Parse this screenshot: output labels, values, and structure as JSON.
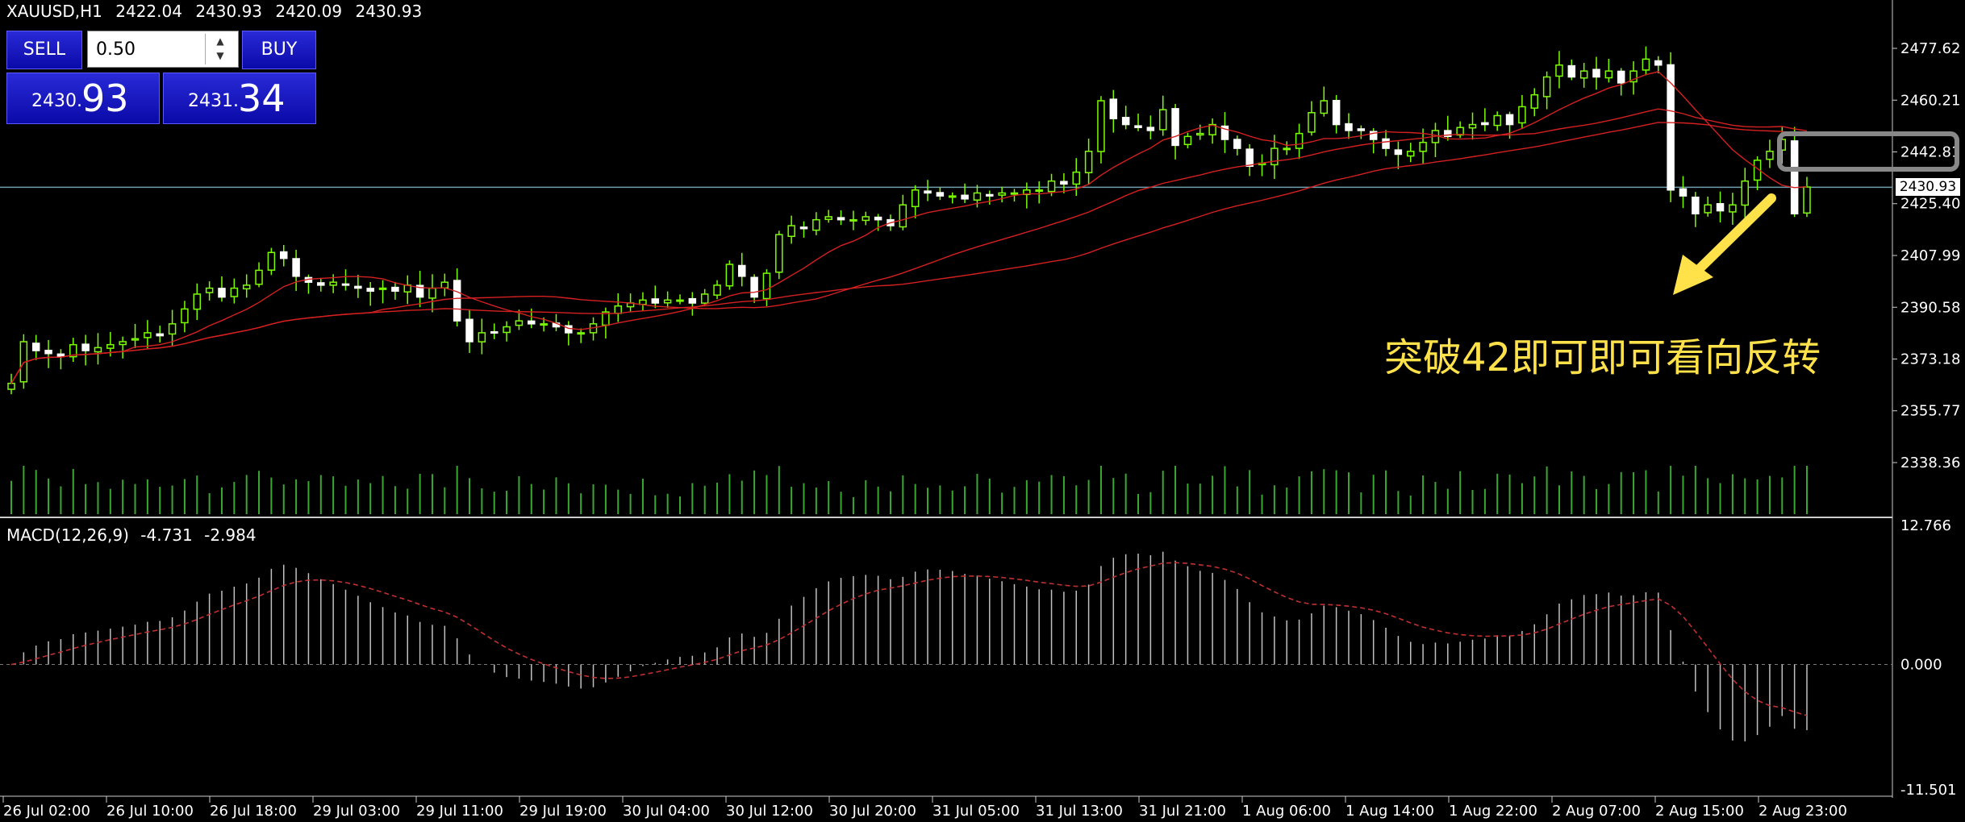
{
  "header": {
    "symbol": "XAUUSD,H1",
    "open": "2422.04",
    "high": "2430.93",
    "low": "2420.09",
    "close": "2430.93"
  },
  "trade_panel": {
    "sell_label": "SELL",
    "buy_label": "BUY",
    "lot_value": "0.50",
    "sell_price_small": "2430.",
    "sell_price_big": "93",
    "buy_price_small": "2431.",
    "buy_price_big": "34",
    "button_color": "#1515c8"
  },
  "annotation": {
    "text": "突破42即可即可看向反转",
    "color": "#ffe14a"
  },
  "current_price_label": "2430.93",
  "macd": {
    "label": "MACD(12,26,9)",
    "main": "-4.731",
    "signal": "-2.984",
    "max_label": "12.766",
    "zero_label": "0.000",
    "min_label": "-11.501"
  },
  "chart_data": {
    "type": "candlestick",
    "symbol": "XAUUSD",
    "timeframe": "H1",
    "price_axis_ticks": [
      "2477.62",
      "2460.21",
      "2442.81",
      "2425.40",
      "2407.99",
      "2390.58",
      "2373.18",
      "2355.77",
      "2338.36"
    ],
    "price_axis_ticks_num": [
      2477.62,
      2460.21,
      2442.81,
      2425.4,
      2407.99,
      2390.58,
      2373.18,
      2355.77,
      2338.36
    ],
    "time_labels": [
      "26 Jul 02:00",
      "26 Jul 10:00",
      "26 Jul 18:00",
      "29 Jul 03:00",
      "29 Jul 11:00",
      "29 Jul 19:00",
      "30 Jul 04:00",
      "30 Jul 12:00",
      "30 Jul 20:00",
      "31 Jul 05:00",
      "31 Jul 13:00",
      "31 Jul 21:00",
      "1 Aug 06:00",
      "1 Aug 14:00",
      "1 Aug 22:00",
      "2 Aug 07:00",
      "2 Aug 15:00",
      "2 Aug 23:00"
    ],
    "close": [
      2365,
      2379,
      2376,
      2375,
      2374,
      2378,
      2376,
      2377,
      2378,
      2379,
      2380,
      2382,
      2381,
      2385,
      2390,
      2395,
      2397,
      2394,
      2397,
      2398,
      2403,
      2409,
      2407,
      2401,
      2399,
      2398,
      2399,
      2398,
      2397,
      2396,
      2397,
      2396,
      2398,
      2394,
      2397,
      2399,
      2386,
      2379,
      2382,
      2382,
      2384,
      2386,
      2385,
      2385,
      2384,
      2382,
      2382,
      2385,
      2389,
      2391,
      2392,
      2393,
      2392,
      2393,
      2393,
      2392,
      2395,
      2398,
      2405,
      2401,
      2394,
      2402,
      2415,
      2418,
      2417,
      2420,
      2421,
      2420,
      2420,
      2421,
      2420,
      2418,
      2425,
      2430,
      2429,
      2428,
      2428,
      2427,
      2429,
      2428,
      2429,
      2429,
      2430,
      2430,
      2433,
      2432,
      2436,
      2443,
      2460,
      2454,
      2452,
      2451,
      2450,
      2457,
      2445,
      2448,
      2449,
      2452,
      2447,
      2444,
      2438,
      2439,
      2444,
      2444,
      2449,
      2456,
      2460,
      2452,
      2450,
      2450,
      2447,
      2444,
      2442,
      2443,
      2446,
      2450,
      2448,
      2451,
      2452,
      2452,
      2455,
      2452,
      2458,
      2462,
      2468,
      2472,
      2468,
      2470,
      2468,
      2470,
      2466,
      2470,
      2474,
      2472,
      2430,
      2428,
      2422,
      2425,
      2423,
      2425,
      2433,
      2440,
      2443,
      2447,
      2422,
      2431
    ],
    "ema_lines": "3 moving averages (red)",
    "volume": "histogram (green)",
    "current_price": 2430.93,
    "macd_hist_range": [
      -11.501,
      12.766
    ]
  },
  "colors": {
    "candle": "#7cfc00",
    "ma": "#d42020",
    "grid_line": "#6fa0b0",
    "macd_hist": "#c0c0c0",
    "signal": "#c03030"
  }
}
